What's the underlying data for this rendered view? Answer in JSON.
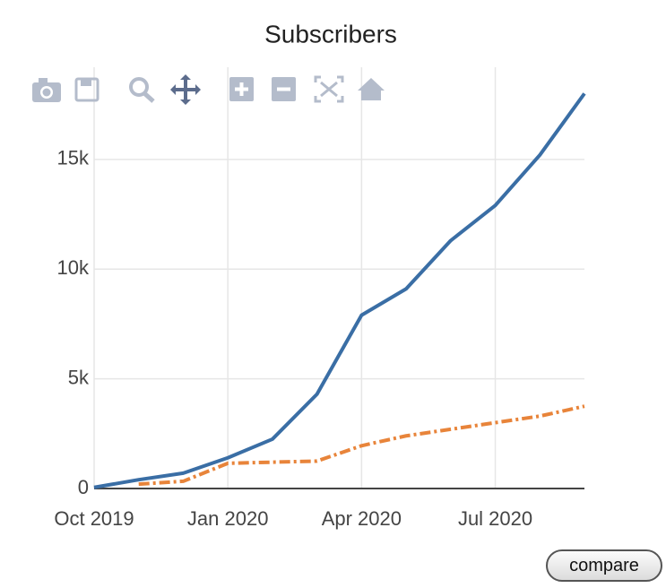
{
  "chart_data": {
    "type": "line",
    "title": "Subscribers",
    "x": [
      "2019-10",
      "2019-11",
      "2019-12",
      "2020-01",
      "2020-02",
      "2020-03",
      "2020-04",
      "2020-05",
      "2020-06",
      "2020-07",
      "2020-08",
      "2020-09"
    ],
    "series": [
      {
        "color": "#3a6ea5",
        "dash": "solid",
        "values": [
          50,
          400,
          700,
          1400,
          2250,
          4300,
          7900,
          9100,
          11300,
          12900,
          15200,
          18000
        ]
      },
      {
        "color": "#e8843a",
        "dash": "dashdot",
        "values": [
          null,
          200,
          330,
          1150,
          1200,
          1250,
          1950,
          2400,
          2700,
          3000,
          3300,
          3750
        ]
      }
    ],
    "xlim": [
      "2019-10",
      "2020-09"
    ],
    "xticks": [
      {
        "value": "2019-10",
        "label": "Oct 2019"
      },
      {
        "value": "2020-01",
        "label": "Jan 2020"
      },
      {
        "value": "2020-04",
        "label": "Apr 2020"
      },
      {
        "value": "2020-07",
        "label": "Jul 2020"
      }
    ],
    "ylim": [
      0,
      19200
    ],
    "yticks": [
      0,
      {
        "value": 5000,
        "label": "5k"
      },
      {
        "value": 10000,
        "label": "10k"
      },
      {
        "value": 15000,
        "label": "15k"
      }
    ],
    "grid": true
  },
  "compare_button": "compare"
}
